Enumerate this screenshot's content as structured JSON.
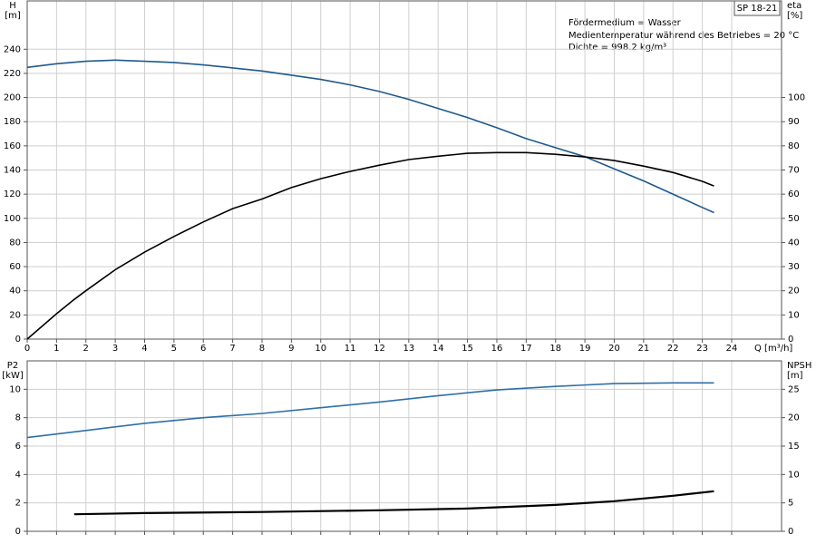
{
  "chart_data": [
    {
      "type": "line",
      "title": "SP 18-21",
      "annotation": [
        "Fördermedium = Wasser",
        "Medientemperatur während des Betriebes = 20 °C",
        "Dichte = 998.2 kg/m³"
      ],
      "y_label": [
        "H",
        "[m]"
      ],
      "y2_label": [
        "eta",
        "[%]"
      ],
      "x_label": "Q [m³/h]",
      "xlim": [
        0,
        25.7
      ],
      "xticks": [
        0,
        1,
        2,
        3,
        4,
        5,
        6,
        7,
        8,
        9,
        10,
        11,
        12,
        13,
        14,
        15,
        16,
        17,
        18,
        19,
        20,
        21,
        22,
        23,
        24
      ],
      "ylim": [
        0,
        280
      ],
      "yticks": [
        0,
        20,
        40,
        60,
        80,
        100,
        120,
        140,
        160,
        180,
        200,
        220,
        240
      ],
      "y2lim": [
        0,
        140
      ],
      "y2ticks": [
        0,
        10,
        20,
        30,
        40,
        50,
        60,
        70,
        80,
        90,
        100
      ],
      "grid": true,
      "series": [
        {
          "name": "H",
          "color": "#1f5a8c",
          "x": [
            0,
            1,
            2,
            3,
            4,
            5,
            6,
            7,
            8,
            9,
            10,
            11,
            12,
            13,
            14,
            15,
            16,
            17,
            18,
            19,
            20,
            21,
            22,
            23,
            23.4
          ],
          "values": [
            225,
            228,
            230,
            231,
            230,
            229,
            227,
            224.5,
            222,
            218.5,
            215,
            210.5,
            205,
            198.5,
            191,
            183.5,
            175,
            166,
            158.5,
            151,
            141,
            131,
            120,
            109,
            104.7
          ]
        },
        {
          "name": "eta",
          "color": "#000000",
          "axis": "y2",
          "x": [
            0,
            1,
            1.6,
            2,
            3,
            4,
            5,
            6,
            7,
            8,
            9,
            10,
            11,
            12,
            13,
            14,
            15,
            16,
            17,
            18,
            19,
            20,
            21,
            22,
            23,
            23.4
          ],
          "values": [
            0,
            10.5,
            16.4,
            20,
            28.7,
            36,
            42.5,
            48.5,
            54,
            58,
            62.7,
            66.4,
            69.4,
            72,
            74.3,
            75.7,
            76.9,
            77.2,
            77.2,
            76.5,
            75.4,
            73.9,
            71.6,
            69,
            65.3,
            63.4
          ]
        }
      ]
    },
    {
      "type": "line",
      "y_label": [
        "P2",
        "[kW]"
      ],
      "y2_label": [
        "NPSH",
        "[m]"
      ],
      "xlim": [
        0,
        25.7
      ],
      "xticks": [
        0,
        1,
        2,
        3,
        4,
        5,
        6,
        7,
        8,
        9,
        10,
        11,
        12,
        13,
        14,
        15,
        16,
        17,
        18,
        19,
        20,
        21,
        22,
        23,
        24
      ],
      "ylim": [
        0,
        12
      ],
      "yticks": [
        0,
        2,
        4,
        6,
        8,
        10
      ],
      "y2lim": [
        0,
        30
      ],
      "y2ticks": [
        0,
        5,
        10,
        15,
        20,
        25
      ],
      "grid": true,
      "series": [
        {
          "name": "P2",
          "color": "#2f6fa7",
          "x": [
            0,
            2,
            4,
            6,
            8,
            10,
            12,
            14,
            16,
            18,
            20,
            22,
            23.4
          ],
          "values": [
            6.6,
            7.1,
            7.6,
            8.0,
            8.3,
            8.7,
            9.1,
            9.55,
            9.95,
            10.2,
            10.4,
            10.45,
            10.45
          ]
        },
        {
          "name": "NPSH",
          "color": "#000000",
          "axis": "y2",
          "x": [
            1.6,
            4,
            8,
            12,
            15,
            18,
            20,
            22,
            23.4
          ],
          "values": [
            3.0,
            3.2,
            3.4,
            3.7,
            4.0,
            4.65,
            5.3,
            6.25,
            7.05
          ]
        }
      ]
    }
  ]
}
